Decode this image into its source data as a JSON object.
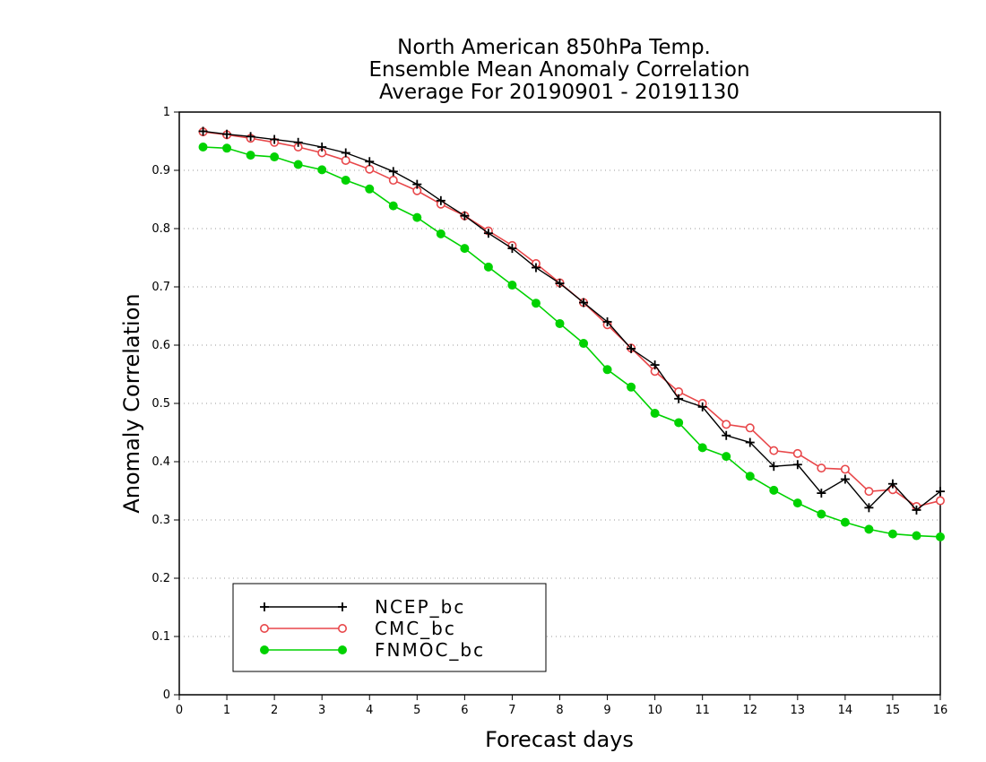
{
  "chart_data": {
    "type": "line",
    "title": [
      "North American 850hPa Temp.",
      "Ensemble Mean Anomaly Correlation",
      "Average For 20190901 - 20191130"
    ],
    "xlabel": "Forecast days",
    "ylabel": "Anomaly Correlation",
    "xlim": [
      0,
      16
    ],
    "ylim": [
      0,
      1
    ],
    "xticks": [
      "0",
      "1",
      "2",
      "3",
      "4",
      "5",
      "6",
      "7",
      "8",
      "9",
      "10",
      "11",
      "12",
      "13",
      "14",
      "15",
      "16"
    ],
    "yticks": [
      "0",
      "0.1",
      "0.2",
      "0.3",
      "0.4",
      "0.5",
      "0.6",
      "0.7",
      "0.8",
      "0.9",
      "1"
    ],
    "grid": "horizontal dotted",
    "legend_position": "bottom-left",
    "x": [
      0.5,
      1,
      1.5,
      2,
      2.5,
      3,
      3.5,
      4,
      4.5,
      5,
      5.5,
      6,
      6.5,
      7,
      7.5,
      8,
      8.5,
      9,
      9.5,
      10,
      10.5,
      11,
      11.5,
      12,
      12.5,
      13,
      13.5,
      14,
      14.5,
      15,
      15.5,
      16
    ],
    "series": [
      {
        "name": "NCEP_bc",
        "color": "#000000",
        "marker": "plus",
        "values": [
          0.967,
          0.962,
          0.958,
          0.953,
          0.948,
          0.94,
          0.93,
          0.915,
          0.898,
          0.876,
          0.848,
          0.822,
          0.792,
          0.766,
          0.733,
          0.706,
          0.673,
          0.64,
          0.594,
          0.566,
          0.508,
          0.494,
          0.445,
          0.433,
          0.392,
          0.395,
          0.346,
          0.37,
          0.321,
          0.362,
          0.317,
          0.349
        ]
      },
      {
        "name": "CMC_bc",
        "color": "#e8474a",
        "marker": "open-circle",
        "values": [
          0.966,
          0.961,
          0.955,
          0.948,
          0.94,
          0.93,
          0.917,
          0.902,
          0.883,
          0.865,
          0.842,
          0.822,
          0.796,
          0.771,
          0.74,
          0.707,
          0.673,
          0.635,
          0.595,
          0.555,
          0.52,
          0.5,
          0.464,
          0.458,
          0.419,
          0.414,
          0.389,
          0.387,
          0.349,
          0.352,
          0.323,
          0.333
        ]
      },
      {
        "name": "FNMOC_bc",
        "color": "#00d200",
        "marker": "filled-circle",
        "values": [
          0.94,
          0.938,
          0.926,
          0.923,
          0.91,
          0.901,
          0.883,
          0.868,
          0.839,
          0.819,
          0.791,
          0.766,
          0.734,
          0.703,
          0.672,
          0.637,
          0.603,
          0.558,
          0.528,
          0.483,
          0.467,
          0.424,
          0.409,
          0.375,
          0.351,
          0.329,
          0.31,
          0.296,
          0.284,
          0.276,
          0.273,
          0.271
        ]
      }
    ]
  }
}
